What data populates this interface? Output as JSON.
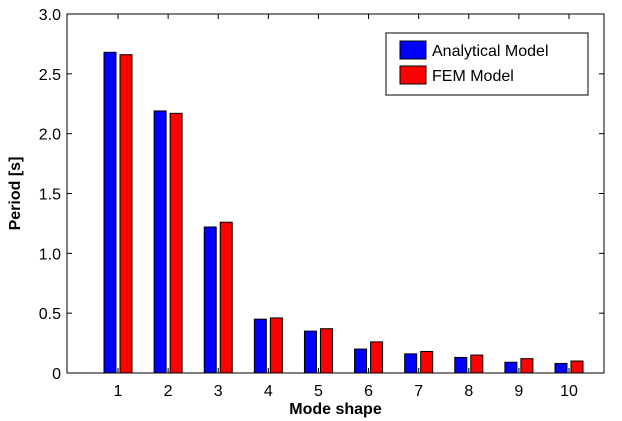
{
  "chart_data": {
    "type": "bar",
    "title": "",
    "xlabel": "Mode shape",
    "ylabel": "Period [s]",
    "categories": [
      "1",
      "2",
      "3",
      "4",
      "5",
      "6",
      "7",
      "8",
      "9",
      "10"
    ],
    "series": [
      {
        "name": "Analytical Model",
        "color": "#0000ff",
        "values": [
          2.68,
          2.19,
          1.22,
          0.45,
          0.35,
          0.2,
          0.16,
          0.13,
          0.09,
          0.08
        ]
      },
      {
        "name": "FEM Model",
        "color": "#ff0000",
        "values": [
          2.66,
          2.17,
          1.26,
          0.46,
          0.37,
          0.26,
          0.18,
          0.15,
          0.12,
          0.1
        ]
      }
    ],
    "ylim": [
      0,
      3.0
    ],
    "yticks": [
      0,
      0.5,
      1.0,
      1.5,
      2.0,
      2.5,
      3.0
    ],
    "ytick_labels": [
      "0",
      "0.5",
      "1.0",
      "1.5",
      "2.0",
      "2.5",
      "3.0"
    ],
    "grid": false,
    "legend_position": "top-right"
  }
}
